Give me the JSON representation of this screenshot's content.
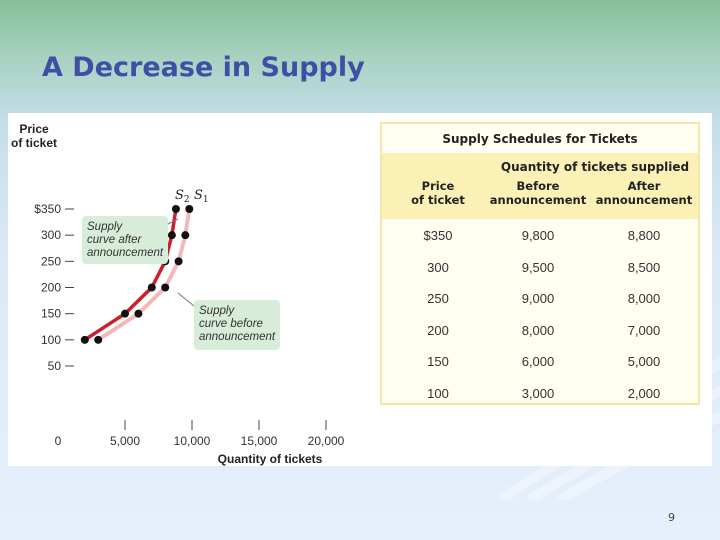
{
  "slide": {
    "title": "A Decrease in Supply",
    "page_number": "9"
  },
  "chart_data": {
    "type": "line",
    "x_axis_label": "Quantity of tickets",
    "y_axis_label": [
      "Price",
      "of ticket"
    ],
    "x_ticks": [
      "0",
      "5,000",
      "10,000",
      "15,000",
      "20,000"
    ],
    "y_ticks": [
      "$350",
      "300",
      "250",
      "200",
      "150",
      "100",
      "50"
    ],
    "xlim": [
      0,
      20000
    ],
    "ylim": [
      0,
      350
    ],
    "series": [
      {
        "name": "S1",
        "subscript_label": "1",
        "color": "#f5b8b8",
        "annotation": [
          "Supply",
          "curve before",
          "announcement"
        ],
        "points": [
          [
            3000,
            100
          ],
          [
            6000,
            150
          ],
          [
            8000,
            200
          ],
          [
            9000,
            250
          ],
          [
            9500,
            300
          ],
          [
            9800,
            350
          ]
        ]
      },
      {
        "name": "S2",
        "subscript_label": "2",
        "color": "#cc1f2a",
        "annotation": [
          "Supply",
          "curve after",
          "announcement"
        ],
        "points": [
          [
            2000,
            100
          ],
          [
            5000,
            150
          ],
          [
            7000,
            200
          ],
          [
            8000,
            250
          ],
          [
            8500,
            300
          ],
          [
            8800,
            350
          ]
        ]
      }
    ]
  },
  "table": {
    "title": "Supply Schedules for Tickets",
    "group_header": "Quantity of tickets supplied",
    "columns": [
      [
        "Price",
        "of ticket"
      ],
      [
        "Before",
        "announcement"
      ],
      [
        "After",
        "announcement"
      ]
    ],
    "rows": [
      [
        "$350",
        "9,800",
        "8,800"
      ],
      [
        "300",
        "9,500",
        "8,500"
      ],
      [
        "250",
        "9,000",
        "8,000"
      ],
      [
        "200",
        "8,000",
        "7,000"
      ],
      [
        "150",
        "6,000",
        "5,000"
      ],
      [
        "100",
        "3,000",
        "2,000"
      ]
    ]
  }
}
